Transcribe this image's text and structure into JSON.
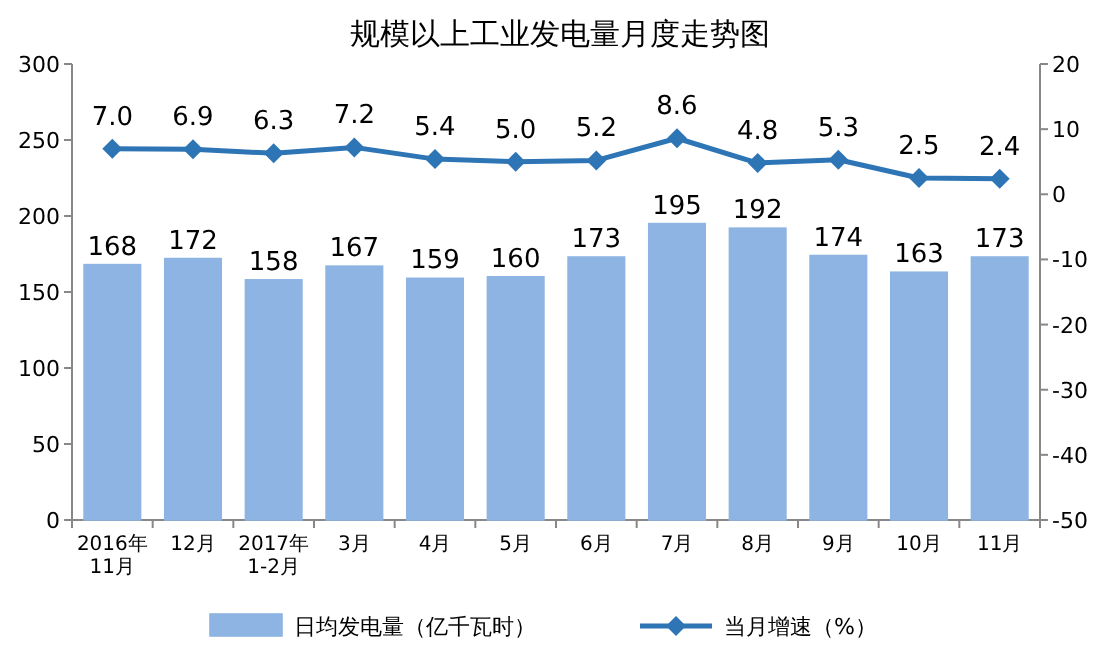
{
  "chart_data": {
    "type": "bar",
    "title": "规模以上工业发电量月度走势图",
    "categories": [
      "2016年\n11月",
      "12月",
      "2017年\n1-2月",
      "3月",
      "4月",
      "5月",
      "6月",
      "7月",
      "8月",
      "9月",
      "10月",
      "11月"
    ],
    "series": [
      {
        "name": "日均发电量（亿千瓦时）",
        "color": "#8db4e2",
        "values": [
          168,
          172,
          158,
          167,
          159,
          160,
          173,
          195,
          192,
          174,
          163,
          173
        ]
      },
      {
        "name": "当月增速（%）",
        "type": "line",
        "axis": "y2",
        "color": "#2e75b6",
        "marker": "diamond",
        "values": [
          7.0,
          6.9,
          6.3,
          7.2,
          5.4,
          5.0,
          5.2,
          8.6,
          4.8,
          5.3,
          2.5,
          2.4
        ],
        "value_labels": [
          "7.0",
          "6.9",
          "6.3",
          "7.2",
          "5.4",
          "5.0",
          "5.2",
          "8.6",
          "4.8",
          "5.3",
          "2.5",
          "2.4"
        ]
      }
    ],
    "ylim": [
      0,
      300
    ],
    "yticks": [
      0,
      50,
      100,
      150,
      200,
      250,
      300
    ],
    "y2lim": [
      -50,
      20
    ],
    "y2ticks": [
      -50,
      -40,
      -30,
      -20,
      -10,
      0,
      10,
      20
    ],
    "data_labels": true,
    "legend": "bottom",
    "grid": false
  }
}
